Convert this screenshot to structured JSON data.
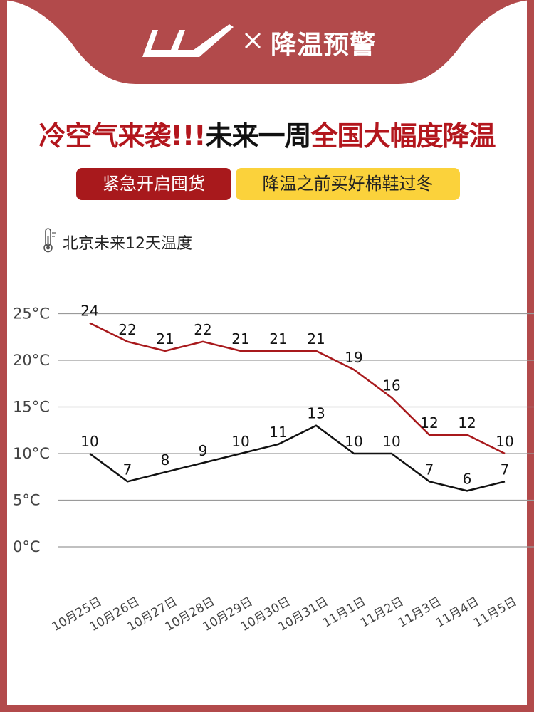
{
  "header": {
    "title": "降温预警",
    "cross": "×",
    "logo_icon": "brand-logo-icon",
    "tab_color": "#b24a4b"
  },
  "headline": {
    "part1": "冷空气来袭!!!",
    "part2": "未来一周",
    "part3": "全国大幅度降温",
    "red": "#b3161d"
  },
  "tags": {
    "red": "紧急开启囤货",
    "yellow": "降温之前买好棉鞋过冬"
  },
  "subtitle": {
    "icon": "thermometer-icon",
    "text": "北京未来12天温度"
  },
  "chart_data": {
    "type": "line",
    "title": "",
    "xlabel": "",
    "ylabel": "",
    "ylim": [
      0,
      25
    ],
    "y_ticks": [
      "0°C",
      "5°C",
      "10°C",
      "15°C",
      "20°C",
      "25°C"
    ],
    "y_tick_values": [
      0,
      5,
      10,
      15,
      20,
      25
    ],
    "grid": true,
    "categories": [
      "10月25日",
      "10月26日",
      "10月27日",
      "10月28日",
      "10月29日",
      "10月30日",
      "10月31日",
      "11月1日",
      "11月2日",
      "11月3日",
      "11月4日",
      "11月5日"
    ],
    "series": [
      {
        "name": "",
        "color": "#a8191c",
        "values": [
          24,
          22,
          21,
          22,
          21,
          21,
          21,
          19,
          16,
          12,
          12,
          10
        ]
      },
      {
        "name": "",
        "color": "#111111",
        "values": [
          10,
          7,
          8,
          9,
          10,
          11,
          13,
          10,
          10,
          7,
          6,
          7
        ]
      }
    ]
  }
}
